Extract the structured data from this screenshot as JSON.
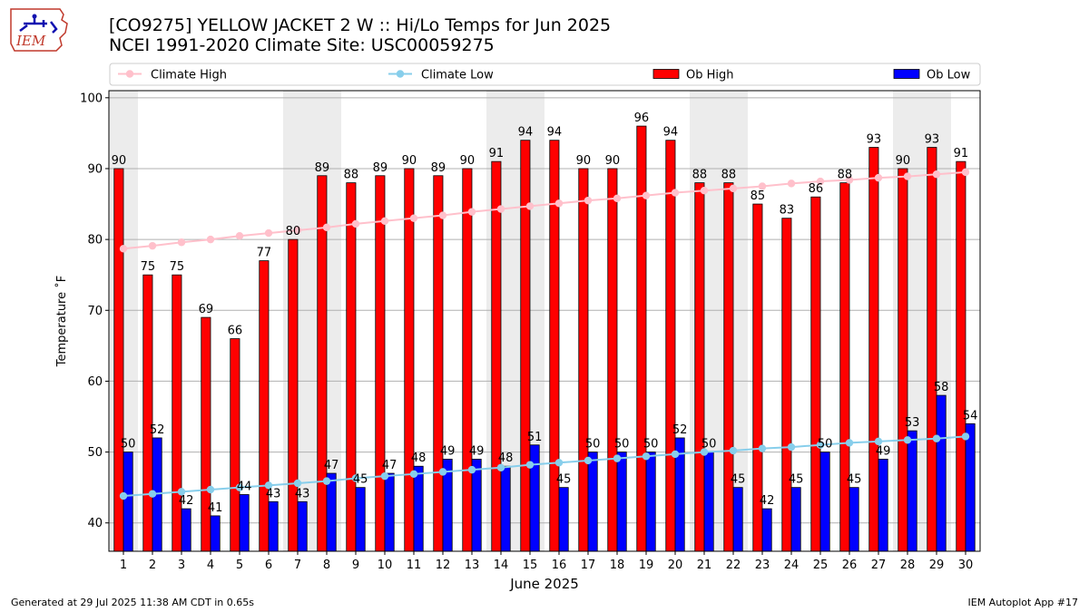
{
  "header": {
    "title_line1": "[CO9275] YELLOW JACKET 2 W :: Hi/Lo Temps for Jun 2025",
    "title_line2": "NCEI 1991-2020 Climate Site: USC00059275",
    "logo_text": "IEM"
  },
  "footer": {
    "generated": "Generated at 29 Jul 2025 11:38 AM CDT in 0.65s",
    "app": "IEM Autoplot App #17"
  },
  "legend": [
    {
      "label": "Climate High",
      "kind": "line",
      "color": "#ffc0cb"
    },
    {
      "label": "Climate Low",
      "kind": "line",
      "color": "#87ceeb"
    },
    {
      "label": "Ob High",
      "kind": "bar",
      "color": "#ff0000"
    },
    {
      "label": "Ob Low",
      "kind": "bar",
      "color": "#0000ff"
    }
  ],
  "chart_data": {
    "type": "bar",
    "xlabel": "June 2025",
    "ylabel": "Temperature ˚F",
    "ylim": [
      36,
      101
    ],
    "yticks": [
      40,
      50,
      60,
      70,
      80,
      90,
      100
    ],
    "grid": "horizontal",
    "legend_position": "top",
    "categories": [
      "1",
      "2",
      "3",
      "4",
      "5",
      "6",
      "7",
      "8",
      "9",
      "10",
      "11",
      "12",
      "13",
      "14",
      "15",
      "16",
      "17",
      "18",
      "19",
      "20",
      "21",
      "22",
      "23",
      "24",
      "25",
      "26",
      "27",
      "28",
      "29",
      "30"
    ],
    "weekend_shading_days": [
      [
        1,
        1
      ],
      [
        7,
        8
      ],
      [
        14,
        15
      ],
      [
        21,
        22
      ],
      [
        28,
        29
      ]
    ],
    "series": [
      {
        "name": "Ob High",
        "type": "bar",
        "color": "#ff0000",
        "values": [
          90,
          75,
          75,
          69,
          66,
          77,
          80,
          89,
          88,
          89,
          90,
          89,
          90,
          91,
          94,
          94,
          90,
          90,
          96,
          94,
          88,
          88,
          85,
          83,
          86,
          88,
          93,
          90,
          93,
          91
        ]
      },
      {
        "name": "Ob Low",
        "type": "bar",
        "color": "#0000ff",
        "values": [
          50,
          52,
          42,
          41,
          44,
          43,
          43,
          47,
          45,
          47,
          48,
          49,
          49,
          48,
          51,
          45,
          50,
          50,
          50,
          52,
          50,
          45,
          42,
          45,
          50,
          45,
          49,
          53,
          58,
          54
        ]
      },
      {
        "name": "Climate High",
        "type": "line",
        "color": "#ffc0cb",
        "values": [
          78.7,
          79.1,
          79.6,
          80.0,
          80.5,
          80.9,
          81.3,
          81.7,
          82.2,
          82.6,
          83.0,
          83.4,
          83.9,
          84.3,
          84.7,
          85.1,
          85.5,
          85.8,
          86.2,
          86.6,
          86.9,
          87.2,
          87.5,
          87.9,
          88.2,
          88.4,
          88.7,
          88.9,
          89.2,
          89.5
        ]
      },
      {
        "name": "Climate Low",
        "type": "line",
        "color": "#87ceeb",
        "values": [
          43.8,
          44.1,
          44.4,
          44.7,
          45.0,
          45.3,
          45.6,
          45.9,
          46.3,
          46.6,
          46.9,
          47.2,
          47.5,
          47.8,
          48.2,
          48.5,
          48.8,
          49.1,
          49.4,
          49.7,
          50.0,
          50.2,
          50.5,
          50.7,
          51.0,
          51.3,
          51.5,
          51.7,
          51.9,
          52.2
        ]
      }
    ]
  }
}
